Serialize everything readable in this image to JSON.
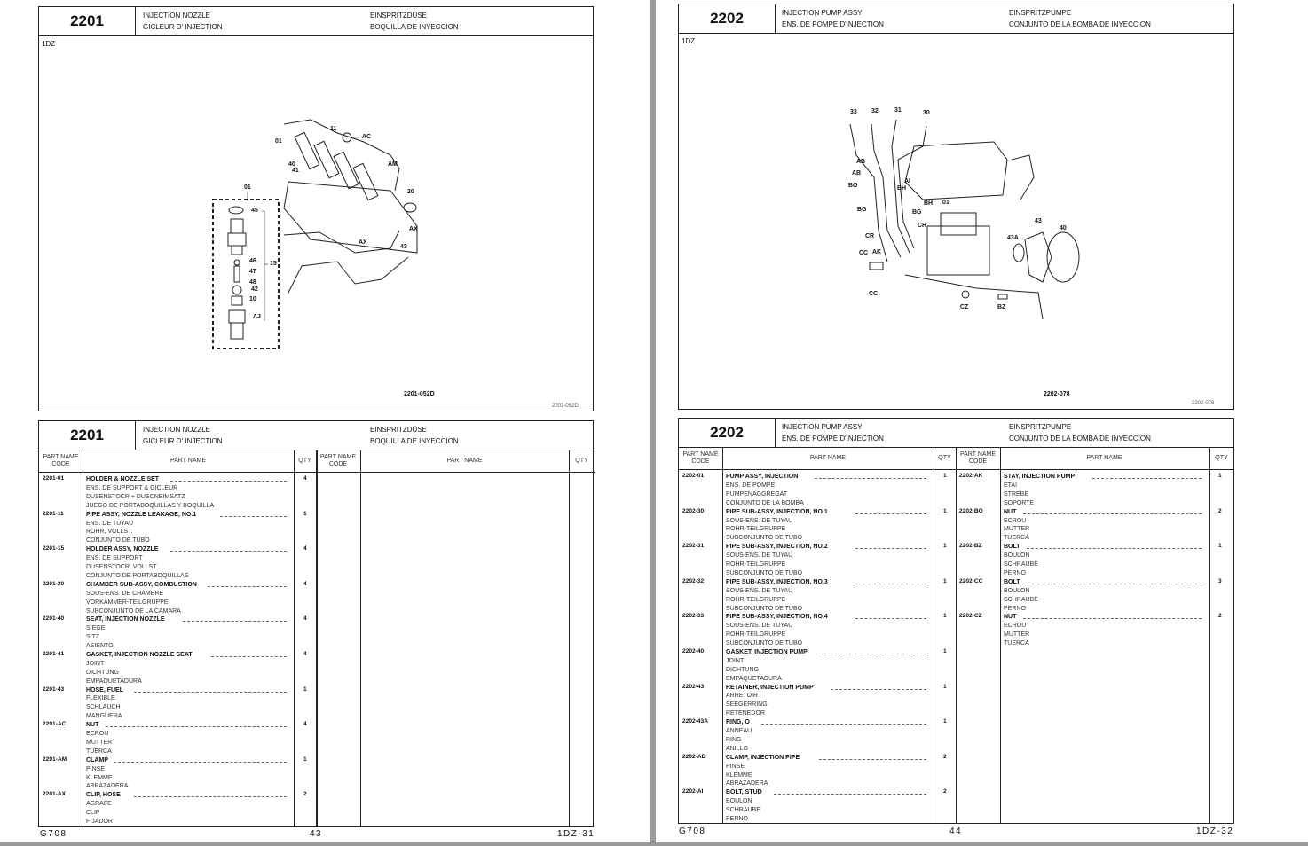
{
  "left_page": {
    "diagram_box": {
      "code": "2201",
      "title_en": "INJECTION NOZZLE",
      "title_fr": "GICLEUR D' INJECTION",
      "title_de": "EINSPRITZDÜSE",
      "title_es": "BOQUILLA DE INYECCION",
      "engine": "1DZ",
      "illustration_code": "2201-052D",
      "illustration_code_small": "2201-052D",
      "callouts": [
        "11",
        "AC",
        "01",
        "AM",
        "40",
        "41",
        "01",
        "20",
        "45",
        "AX",
        "43",
        "AX",
        "46",
        "15",
        "47",
        "48",
        "42",
        "10",
        "AJ"
      ]
    },
    "table": {
      "code": "2201",
      "title_en": "INJECTION NOZZLE",
      "title_fr": "GICLEUR D' INJECTION",
      "title_de": "EINSPRITZDÜSE",
      "title_es": "BOQUILLA DE INYECCION",
      "col_code": "PART NAME CODE",
      "col_name": "PART NAME",
      "col_qty": "QTY",
      "left_rows": [
        {
          "code": "2201-01",
          "name": "HOLDER & NOZZLE SET",
          "fr": "ENS. DE SUPPORT & GICLEUR",
          "de": "DUSENSTOCR + DUSCNEIMSATZ",
          "es": "JUEGO DE PORTABOQUILLAS Y BOQUILLA",
          "qty": "4"
        },
        {
          "code": "2201-11",
          "name": "PIPE ASSY, NOZZLE LEAKAGE, NO.1",
          "fr": "ENS. DE TUYAU",
          "de": "ROHR, VOLLST.",
          "es": "CONJUNTO DE TUBO",
          "qty": "1"
        },
        {
          "code": "2201-15",
          "name": "HOLDER ASSY, NOZZLE",
          "fr": "ENS. DE SUPPORT",
          "de": "DUSENSTOCR, VOLLST.",
          "es": "CONJUNTO DE PORTABOQUILLAS",
          "qty": "4"
        },
        {
          "code": "2201-20",
          "name": "CHAMBER SUB-ASSY, COMBUSTION",
          "fr": "SOUS-ENS. DE CHAMBRE",
          "de": "VORKAMMER-TEILGRUPPE",
          "es": "SUBCONJUNTO DE LA CAMARA",
          "qty": "4"
        },
        {
          "code": "2201-40",
          "name": "SEAT, INJECTION NOZZLE",
          "fr": "SIEGE",
          "de": "SITZ",
          "es": "ASIENTO",
          "qty": "4"
        },
        {
          "code": "2201-41",
          "name": "GASKET, INJECTION NOZZLE SEAT",
          "fr": "JOINT",
          "de": "DICHTUNG",
          "es": "EMPAQUETADURA",
          "qty": "4"
        },
        {
          "code": "2201-43",
          "name": "HOSE, FUEL",
          "fr": "FLEXIBLE",
          "de": "SCHLAUCH",
          "es": "MANGUERA",
          "qty": "1"
        },
        {
          "code": "2201-AC",
          "name": "NUT",
          "fr": "ECROU",
          "de": "MUTTER",
          "es": "TUERCA",
          "qty": "4"
        },
        {
          "code": "2201-AM",
          "name": "CLAMP",
          "fr": "PINSE",
          "de": "KLEMME",
          "es": "ABRAZADERA",
          "qty": "1"
        },
        {
          "code": "2201-AX",
          "name": "CLIP, HOSE",
          "fr": "AGRAFE",
          "de": "CLIP",
          "es": "FIJADOR",
          "qty": "2"
        }
      ],
      "right_rows": []
    },
    "footer": {
      "model": "G708",
      "page": "43",
      "section": "1DZ-31"
    }
  },
  "right_page": {
    "diagram_box": {
      "code": "2202",
      "title_en": "INJECTION PUMP ASSY",
      "title_fr": "ENS. DE POMPE D'INJECTION",
      "title_de": "EINSPRITZPUMPE",
      "title_es": "CONJUNTO DE LA BOMBA DE INYECCION",
      "engine": "1DZ",
      "illustration_code": "2202-078",
      "illustration_code_small": "2202-078",
      "callouts": [
        "33",
        "32",
        "31",
        "30",
        "AB",
        "AB",
        "BO",
        "AI",
        "BH",
        "BH",
        "01",
        "BG",
        "BG",
        "CR",
        "CR",
        "43",
        "40",
        "43A",
        "CC",
        "AK",
        "CC",
        "CZ",
        "BZ"
      ]
    },
    "table": {
      "code": "2202",
      "title_en": "INJECTION PUMP ASSY",
      "title_fr": "ENS. DE POMPE D'INJECTION",
      "title_de": "EINSPRITZPUMPE",
      "title_es": "CONJUNTO DE LA BOMBA DE INYECCION",
      "col_code": "PART NAME CODE",
      "col_name": "PART NAME",
      "col_qty": "QTY",
      "left_rows": [
        {
          "code": "2202-01",
          "name": "PUMP ASSY, INJECTION",
          "fr": "ENS. DE POMPE",
          "de": "PUMPENAGGREGAT",
          "es": "CONJUNTO DE LA BOMBA",
          "qty": "1"
        },
        {
          "code": "2202-30",
          "name": "PIPE SUB-ASSY, INJECTION, NO.1",
          "fr": "SOUS-ENS. DE TUYAU",
          "de": "ROHR-TEILGRUPPE",
          "es": "SUBCONJUNTO DE TUBO",
          "qty": "1"
        },
        {
          "code": "2202-31",
          "name": "PIPE SUB-ASSY, INJECTION, NO.2",
          "fr": "SOUS-ENS. DE TUYAU",
          "de": "ROHR-TEILGRUPPE",
          "es": "SUBCONJUNTO DE TUBO",
          "qty": "1"
        },
        {
          "code": "2202-32",
          "name": "PIPE SUB-ASSY, INJECTION, NO.3",
          "fr": "SOUS-ENS. DE TUYAU",
          "de": "ROHR-TEILGRUPPE",
          "es": "SUBCONJUNTO DE TUBO",
          "qty": "1"
        },
        {
          "code": "2202-33",
          "name": "PIPE SUB-ASSY, INJECTION, NO.4",
          "fr": "SOUS-ENS. DE TUYAU",
          "de": "ROHR-TEILGRUPPE",
          "es": "SUBCONJUNTO DE TUBO",
          "qty": "1"
        },
        {
          "code": "2202-40",
          "name": "GASKET, INJECTION PUMP",
          "fr": "JOINT",
          "de": "DICHTUNG",
          "es": "EMPAQUETADURA",
          "qty": "1"
        },
        {
          "code": "2202-43",
          "name": "RETAINER, INJECTION PUMP",
          "fr": "ARRETOIR",
          "de": "SEEGERRING",
          "es": "RETENEDOR",
          "qty": "1"
        },
        {
          "code": "2202-43A",
          "name": "RING, O",
          "fr": "ANNEAU",
          "de": "RING",
          "es": "ANILLO",
          "qty": "1"
        },
        {
          "code": "2202-AB",
          "name": "CLAMP, INJECTION PIPE",
          "fr": "PINSE",
          "de": "KLEMME",
          "es": "ABRAZADERA",
          "qty": "2"
        },
        {
          "code": "2202-AI",
          "name": "BOLT, STUD",
          "fr": "BOULON",
          "de": "SCHRAUBE",
          "es": "PERNO",
          "qty": "2"
        }
      ],
      "right_rows": [
        {
          "code": "2202-AK",
          "name": "STAY, INJECTION PUMP",
          "fr": "ETAI",
          "de": "STREBE",
          "es": "SOPORTE",
          "qty": "1"
        },
        {
          "code": "2202-BO",
          "name": "NUT",
          "fr": "ECROU",
          "de": "MUTTER",
          "es": "TUERCA",
          "qty": "2"
        },
        {
          "code": "2202-BZ",
          "name": "BOLT",
          "fr": "BOULON",
          "de": "SCHRAUBE",
          "es": "PERNO",
          "qty": "1"
        },
        {
          "code": "2202-CC",
          "name": "BOLT",
          "fr": "BOULON",
          "de": "SCHRAUBE",
          "es": "PERNO",
          "qty": "3"
        },
        {
          "code": "2202-CZ",
          "name": "NUT",
          "fr": "ECROU",
          "de": "MUTTER",
          "es": "TUERCA",
          "qty": "2"
        }
      ]
    },
    "footer": {
      "model": "G708",
      "page": "44",
      "section": "1DZ-32"
    }
  }
}
